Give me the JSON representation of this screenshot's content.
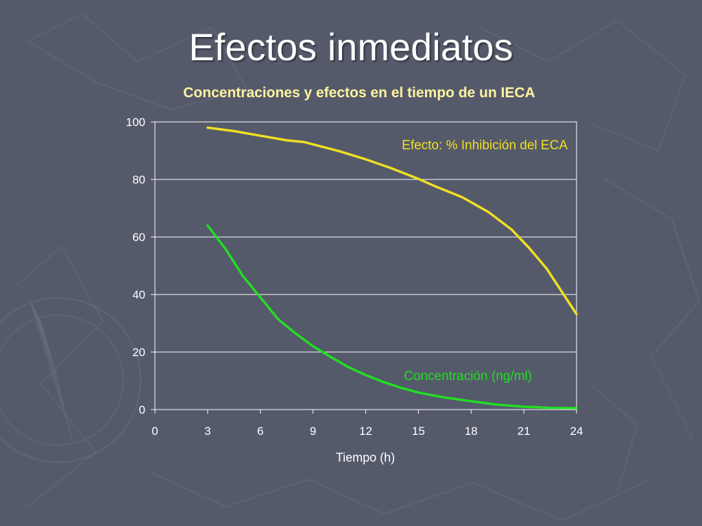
{
  "slide": {
    "title": "Efectos inmediatos"
  },
  "colors": {
    "background": "#555a6b",
    "grid": "#ffffff",
    "title_text": "#fff3a0"
  },
  "chart_data": {
    "type": "line",
    "title": "Concentraciones y efectos en el tiempo de un IECA",
    "xlabel": "Tiempo (h)",
    "ylabel": "",
    "xlim": [
      0,
      24
    ],
    "ylim": [
      0,
      100
    ],
    "xticks": [
      0,
      3,
      6,
      9,
      12,
      15,
      18,
      21,
      24
    ],
    "yticks": [
      0,
      20,
      40,
      60,
      80,
      100
    ],
    "grid": "horizontal",
    "series": [
      {
        "name": "Efecto: % Inhibición del ECA",
        "color": "#f0e020",
        "x": [
          3,
          4.5,
          6,
          7.5,
          8.5,
          10.5,
          12,
          13.5,
          15,
          16,
          17.5,
          19,
          20.3,
          21.3,
          22.3,
          23.2,
          24
        ],
        "y": [
          98,
          96.8,
          95.2,
          93.6,
          93,
          89.8,
          87,
          83.8,
          80.2,
          77.5,
          73.8,
          68.6,
          62.6,
          56.2,
          49,
          40.6,
          33.2
        ]
      },
      {
        "name": "Concentración (ng/ml)",
        "color": "#22dd22",
        "x": [
          3,
          4,
          5,
          6,
          7,
          8,
          9,
          10,
          11,
          12,
          13,
          14,
          15,
          16.5,
          18,
          19.5,
          21,
          22.5,
          24
        ],
        "y": [
          64,
          56,
          46.5,
          39,
          31.5,
          26.5,
          22,
          18.3,
          14.8,
          12,
          9.6,
          7.6,
          5.9,
          4.2,
          2.9,
          1.7,
          1.0,
          0.6,
          0.5
        ]
      }
    ]
  }
}
